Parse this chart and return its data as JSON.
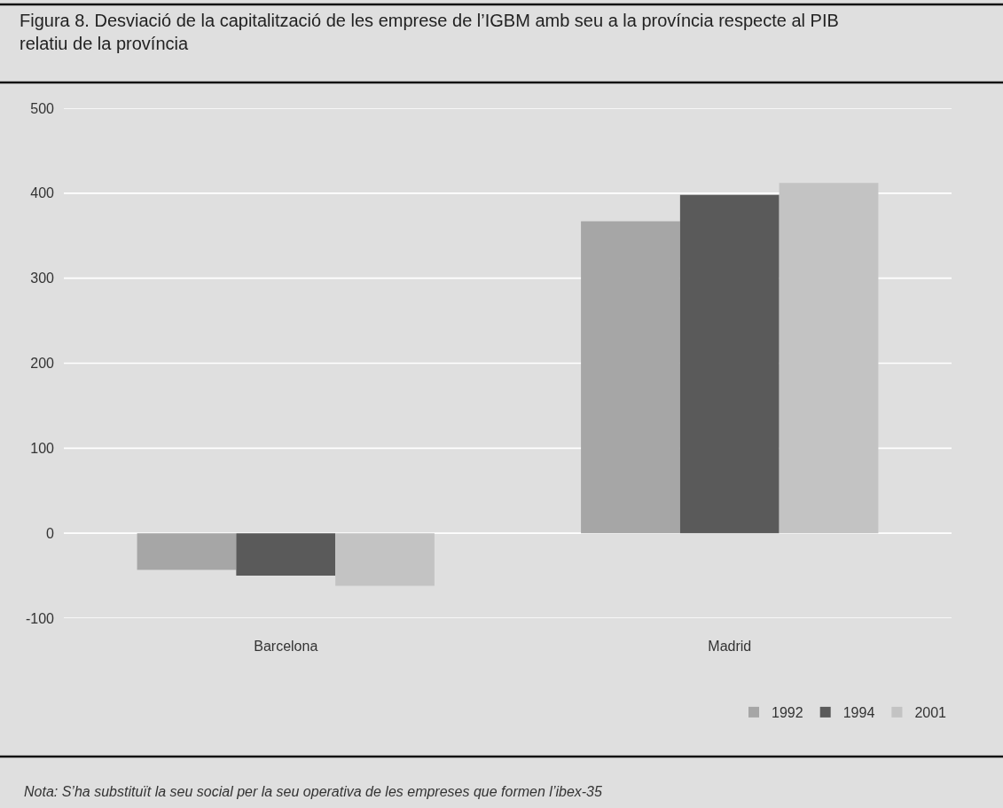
{
  "chart_data": {
    "type": "bar",
    "title": "Figura 8. Desviació de la capitalització de les emprese de l’IGBM amb seu a la província respecte al PIB relatiu de la província",
    "categories": [
      "Barcelona",
      "Madrid"
    ],
    "series": [
      {
        "name": "1992",
        "color": "#a6a6a6",
        "values": [
          -43,
          367
        ]
      },
      {
        "name": "1994",
        "color": "#5a5a5a",
        "values": [
          -50,
          398
        ]
      },
      {
        "name": "2001",
        "color": "#c3c3c3",
        "values": [
          -62,
          412
        ]
      }
    ],
    "ylim": [
      -100,
      500
    ],
    "yticks": [
      -100,
      0,
      100,
      200,
      300,
      400,
      500
    ],
    "grid": "y",
    "legend": "bottom right",
    "annotations": [
      "Nota: S’ha substituït la seu social per la seu operativa de les empreses que formen l’ibex-35"
    ]
  }
}
